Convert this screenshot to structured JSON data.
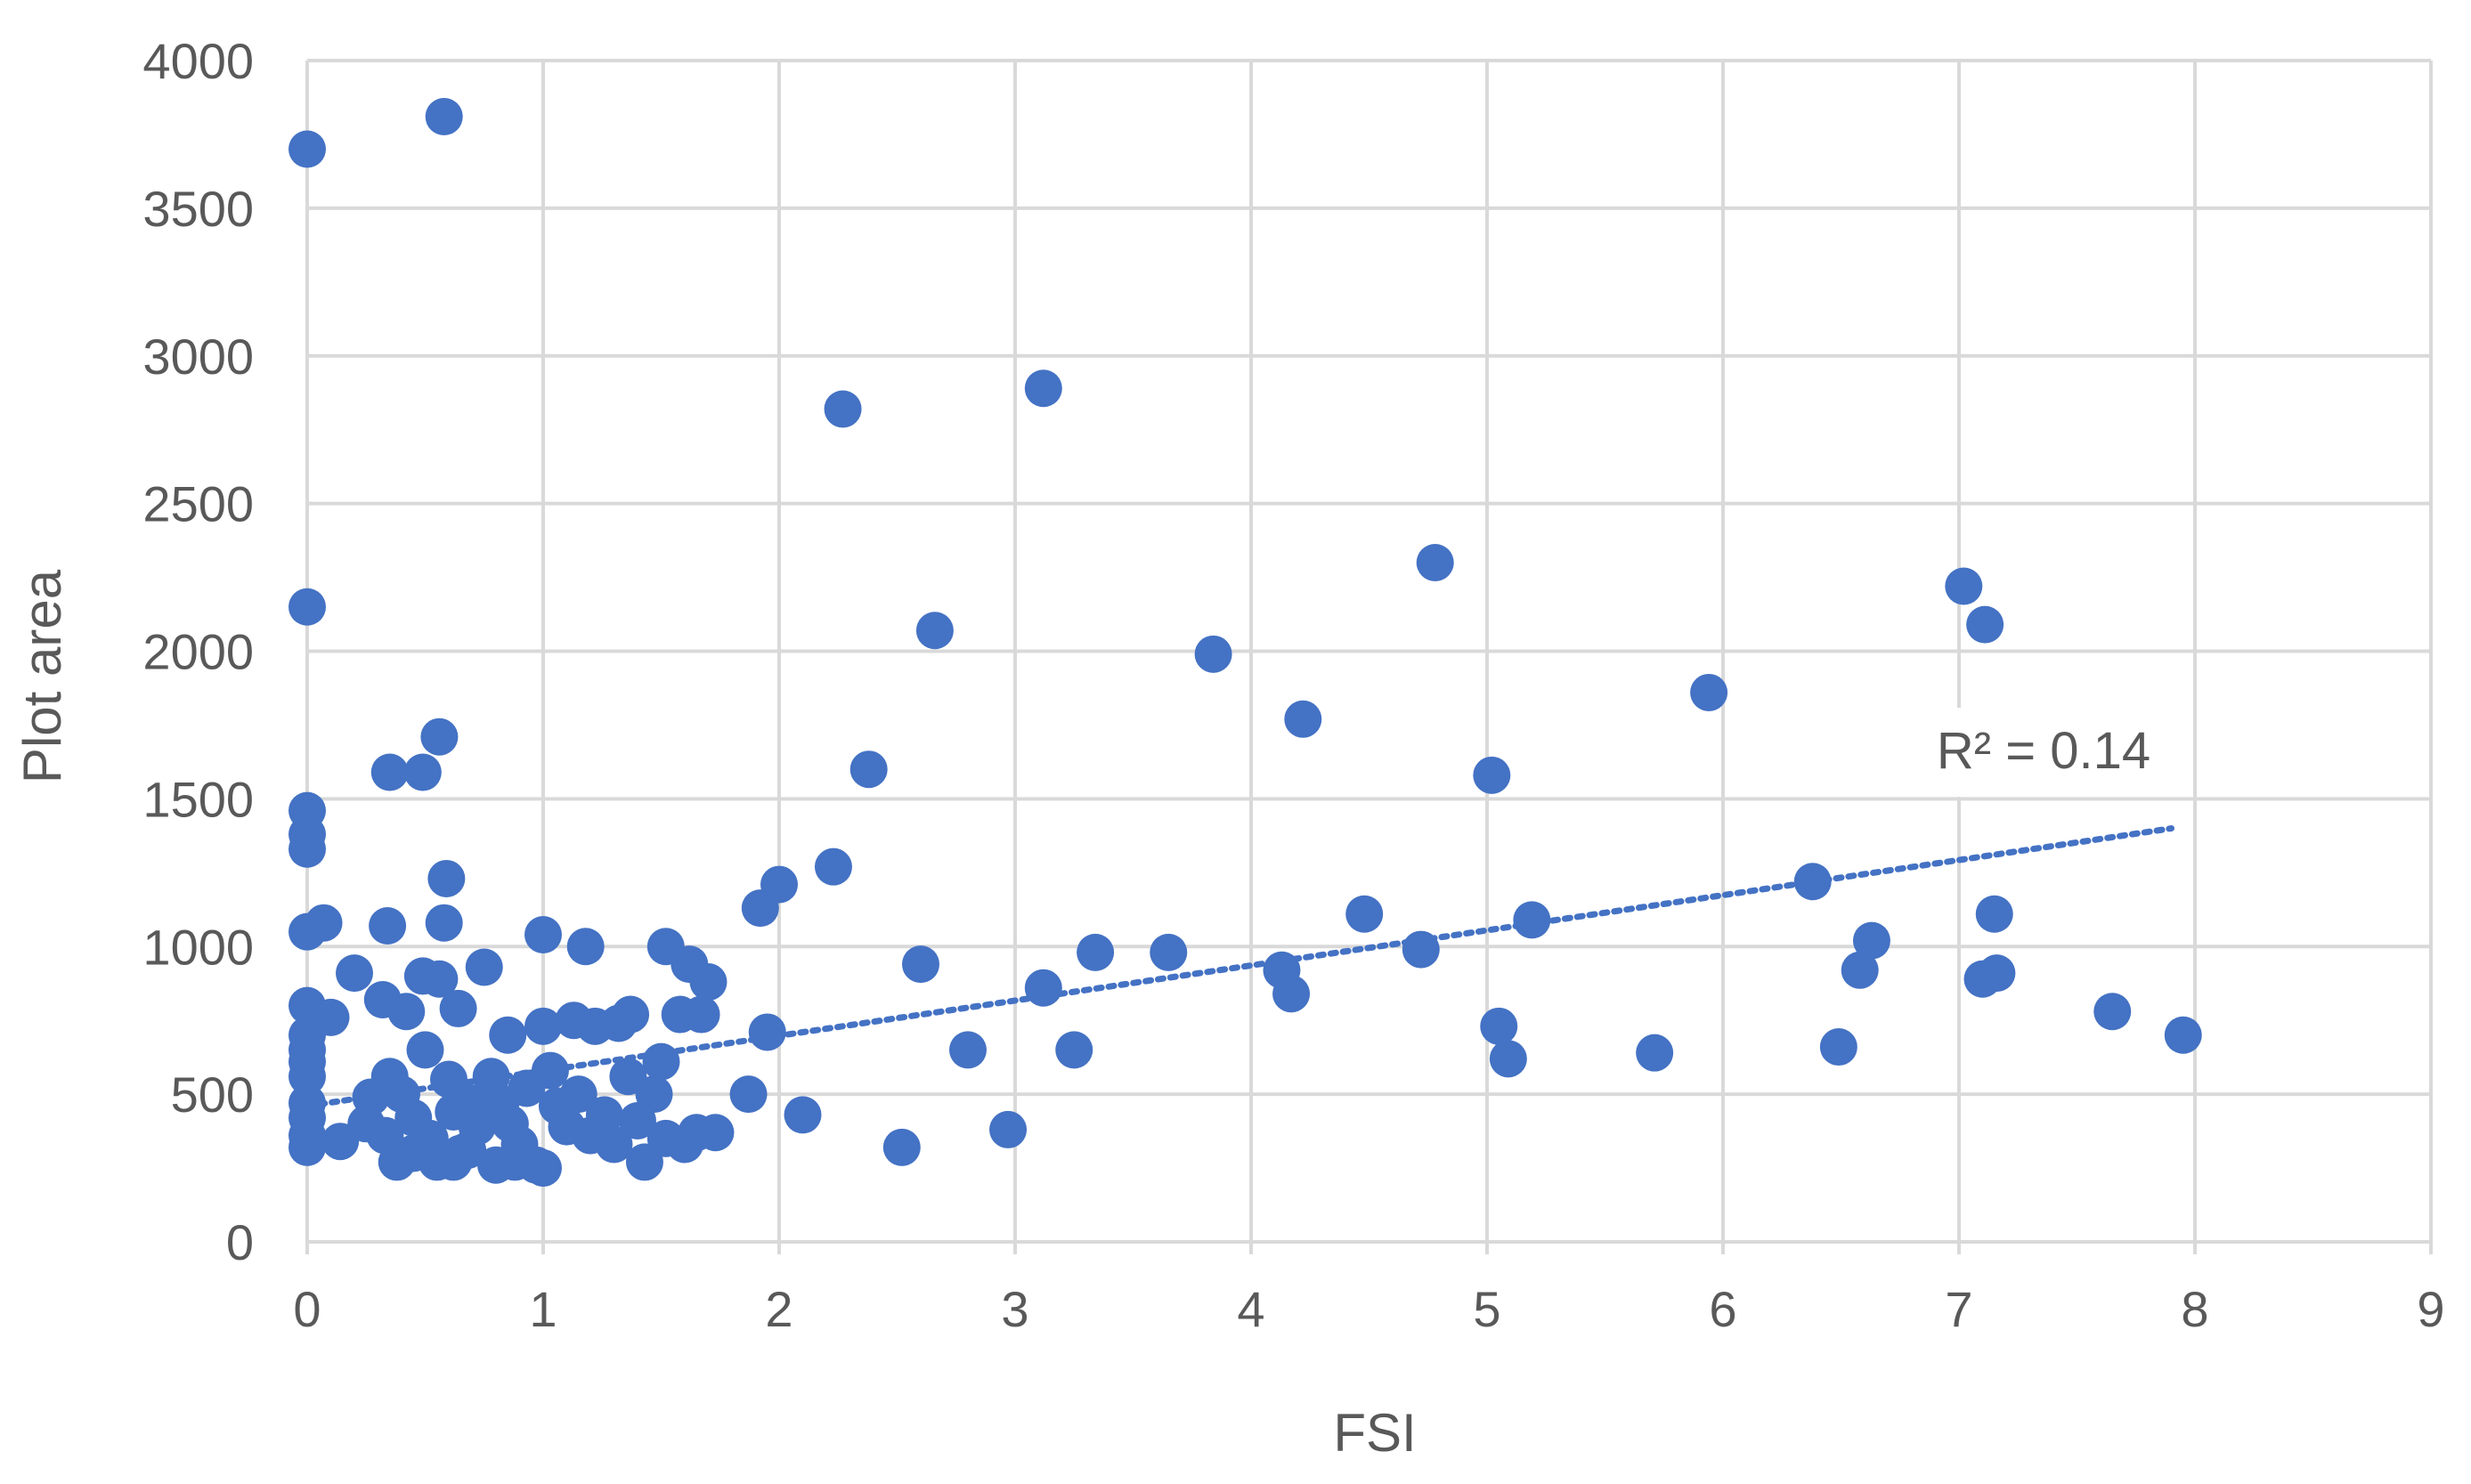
{
  "chart_data": {
    "type": "scatter",
    "title": "",
    "xlabel": "FSI",
    "ylabel": "Plot area",
    "xlim": [
      0,
      9
    ],
    "ylim": [
      0,
      4000
    ],
    "x_ticks": [
      "0",
      "1",
      "2",
      "3",
      "4",
      "5",
      "6",
      "7",
      "8",
      "9"
    ],
    "y_ticks": [
      "0",
      "500",
      "1000",
      "1500",
      "2000",
      "2500",
      "3000",
      "3500",
      "4000"
    ],
    "grid": true,
    "legend": "none",
    "marker_color": "#4472C4",
    "trendline": {
      "type": "linear",
      "style": "dotted",
      "x_range": [
        0,
        7.9
      ],
      "y_range": [
        460,
        1400
      ],
      "r2_label": "R² = 0.14"
    },
    "series": [
      {
        "points": [
          [
            0.0,
            3700
          ],
          [
            0.58,
            3810
          ],
          [
            0.0,
            2150
          ],
          [
            2.27,
            2820
          ],
          [
            3.12,
            2890
          ],
          [
            0.0,
            1460
          ],
          [
            0.0,
            1380
          ],
          [
            0.0,
            1330
          ],
          [
            0.35,
            1590
          ],
          [
            0.49,
            1590
          ],
          [
            0.56,
            1710
          ],
          [
            0.59,
            1230
          ],
          [
            0.0,
            1050
          ],
          [
            0.07,
            1080
          ],
          [
            0.58,
            1080
          ],
          [
            0.34,
            1070
          ],
          [
            1.0,
            1040
          ],
          [
            1.18,
            1000
          ],
          [
            1.52,
            1000
          ],
          [
            1.62,
            940
          ],
          [
            1.7,
            880
          ],
          [
            0.75,
            930
          ],
          [
            0.2,
            910
          ],
          [
            0.49,
            900
          ],
          [
            0.56,
            890
          ],
          [
            0.0,
            800
          ],
          [
            0.1,
            760
          ],
          [
            0.32,
            820
          ],
          [
            0.42,
            780
          ],
          [
            0.64,
            790
          ],
          [
            0.85,
            700
          ],
          [
            1.0,
            730
          ],
          [
            1.13,
            750
          ],
          [
            1.22,
            730
          ],
          [
            1.32,
            740
          ],
          [
            1.37,
            770
          ],
          [
            1.58,
            770
          ],
          [
            1.67,
            770
          ],
          [
            0.0,
            700
          ],
          [
            0.0,
            650
          ],
          [
            0.0,
            610
          ],
          [
            0.0,
            560
          ],
          [
            0.0,
            470
          ],
          [
            0.0,
            420
          ],
          [
            0.0,
            360
          ],
          [
            0.0,
            320
          ],
          [
            0.14,
            340
          ],
          [
            0.27,
            490
          ],
          [
            0.35,
            560
          ],
          [
            0.4,
            500
          ],
          [
            0.45,
            420
          ],
          [
            0.5,
            650
          ],
          [
            0.52,
            350
          ],
          [
            0.6,
            550
          ],
          [
            0.62,
            440
          ],
          [
            0.65,
            300
          ],
          [
            0.7,
            470
          ],
          [
            0.72,
            390
          ],
          [
            0.78,
            560
          ],
          [
            0.82,
            470
          ],
          [
            0.86,
            400
          ],
          [
            0.9,
            330
          ],
          [
            0.93,
            520
          ],
          [
            0.97,
            260
          ],
          [
            1.03,
            580
          ],
          [
            1.06,
            460
          ],
          [
            1.1,
            390
          ],
          [
            1.15,
            500
          ],
          [
            1.2,
            360
          ],
          [
            1.26,
            430
          ],
          [
            1.3,
            330
          ],
          [
            1.36,
            560
          ],
          [
            1.4,
            410
          ],
          [
            1.43,
            270
          ],
          [
            1.47,
            500
          ],
          [
            1.5,
            610
          ],
          [
            1.52,
            350
          ],
          [
            1.6,
            330
          ],
          [
            1.65,
            370
          ],
          [
            1.73,
            370
          ],
          [
            0.38,
            270
          ],
          [
            0.45,
            300
          ],
          [
            0.55,
            270
          ],
          [
            0.62,
            270
          ],
          [
            0.68,
            310
          ],
          [
            0.8,
            260
          ],
          [
            0.88,
            270
          ],
          [
            1.0,
            250
          ],
          [
            0.25,
            400
          ],
          [
            0.33,
            360
          ],
          [
            1.87,
            500
          ],
          [
            1.92,
            1130
          ],
          [
            1.95,
            710
          ],
          [
            2.0,
            1210
          ],
          [
            2.1,
            430
          ],
          [
            2.23,
            1270
          ],
          [
            2.38,
            1600
          ],
          [
            2.52,
            320
          ],
          [
            2.6,
            940
          ],
          [
            2.66,
            2070
          ],
          [
            2.8,
            650
          ],
          [
            2.97,
            380
          ],
          [
            3.12,
            860
          ],
          [
            3.25,
            650
          ],
          [
            3.34,
            980
          ],
          [
            3.65,
            980
          ],
          [
            3.84,
            1990
          ],
          [
            4.13,
            920
          ],
          [
            4.17,
            840
          ],
          [
            4.22,
            1770
          ],
          [
            4.48,
            1110
          ],
          [
            4.72,
            990
          ],
          [
            4.78,
            2300
          ],
          [
            5.02,
            1580
          ],
          [
            5.05,
            730
          ],
          [
            5.09,
            620
          ],
          [
            5.19,
            1090
          ],
          [
            5.71,
            640
          ],
          [
            5.94,
            1860
          ],
          [
            6.38,
            1220
          ],
          [
            6.49,
            660
          ],
          [
            6.58,
            920
          ],
          [
            6.63,
            1020
          ],
          [
            7.02,
            2220
          ],
          [
            7.11,
            2090
          ],
          [
            7.1,
            890
          ],
          [
            7.15,
            1110
          ],
          [
            7.16,
            910
          ],
          [
            7.65,
            780
          ],
          [
            7.95,
            700
          ]
        ]
      }
    ]
  }
}
